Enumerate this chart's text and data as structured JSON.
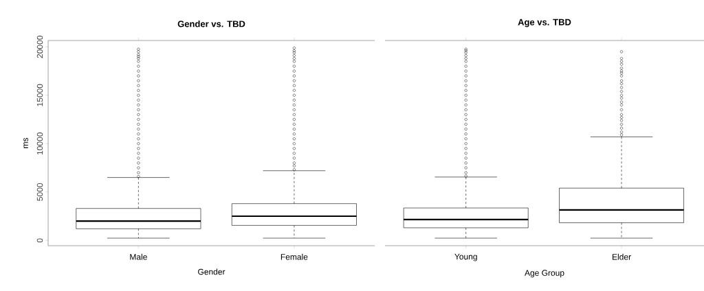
{
  "chart_data": [
    {
      "type": "box",
      "title": "Gender vs. TBD",
      "xlabel": "Gender",
      "ylabel": "ms",
      "categories": [
        "Male",
        "Female"
      ],
      "ylim": [
        -550,
        20660
      ],
      "yticks": [
        0,
        5000,
        10000,
        15000,
        20000
      ],
      "grid": false,
      "boxes": [
        {
          "low": 230,
          "q1": 1200,
          "median": 2000,
          "q3": 3300,
          "high": 6500,
          "outliers": [
            6600,
            7000,
            7500,
            8000,
            8500,
            9000,
            9500,
            10000,
            10500,
            11000,
            11500,
            12000,
            12500,
            13000,
            13500,
            14000,
            14500,
            15000,
            15500,
            16000,
            16500,
            17000,
            17500,
            18000,
            18500,
            18800,
            19000,
            19200,
            19500,
            19760
          ]
        },
        {
          "low": 230,
          "q1": 1550,
          "median": 2500,
          "q3": 3800,
          "high": 7200,
          "outliers": [
            7300,
            7700,
            8000,
            8500,
            9000,
            9500,
            10000,
            10500,
            11000,
            11500,
            12000,
            12500,
            13000,
            13500,
            14000,
            14500,
            15000,
            15500,
            16000,
            16500,
            17000,
            17500,
            18000,
            18500,
            18800,
            19100,
            19400,
            19600,
            19880
          ]
        }
      ]
    },
    {
      "type": "box",
      "title": "Age vs. TBD",
      "xlabel": "Age Group",
      "categories": [
        "Young",
        "Elder"
      ],
      "ylim": [
        -550,
        20660
      ],
      "yticks": [
        0,
        5000,
        10000,
        15000,
        20000
      ],
      "tick_labels": "x",
      "grid": false,
      "boxes": [
        {
          "low": 230,
          "q1": 1300,
          "median": 2150,
          "q3": 3350,
          "high": 6550,
          "outliers": [
            6650,
            7000,
            7500,
            8000,
            8500,
            9000,
            9500,
            10000,
            10500,
            11000,
            11500,
            12000,
            12500,
            13000,
            13500,
            14000,
            14500,
            15000,
            15500,
            16000,
            16500,
            17000,
            17500,
            18000,
            18500,
            18800,
            19100,
            19400,
            19600,
            19760
          ]
        },
        {
          "low": 230,
          "q1": 1820,
          "median": 3150,
          "q3": 5400,
          "high": 10700,
          "outliers": [
            10900,
            11200,
            11600,
            12000,
            12400,
            12700,
            13000,
            13500,
            14000,
            14300,
            14700,
            15000,
            15400,
            15800,
            16200,
            16500,
            17000,
            17300,
            17500,
            17800,
            18200,
            18500,
            18800,
            19500
          ]
        }
      ]
    }
  ]
}
